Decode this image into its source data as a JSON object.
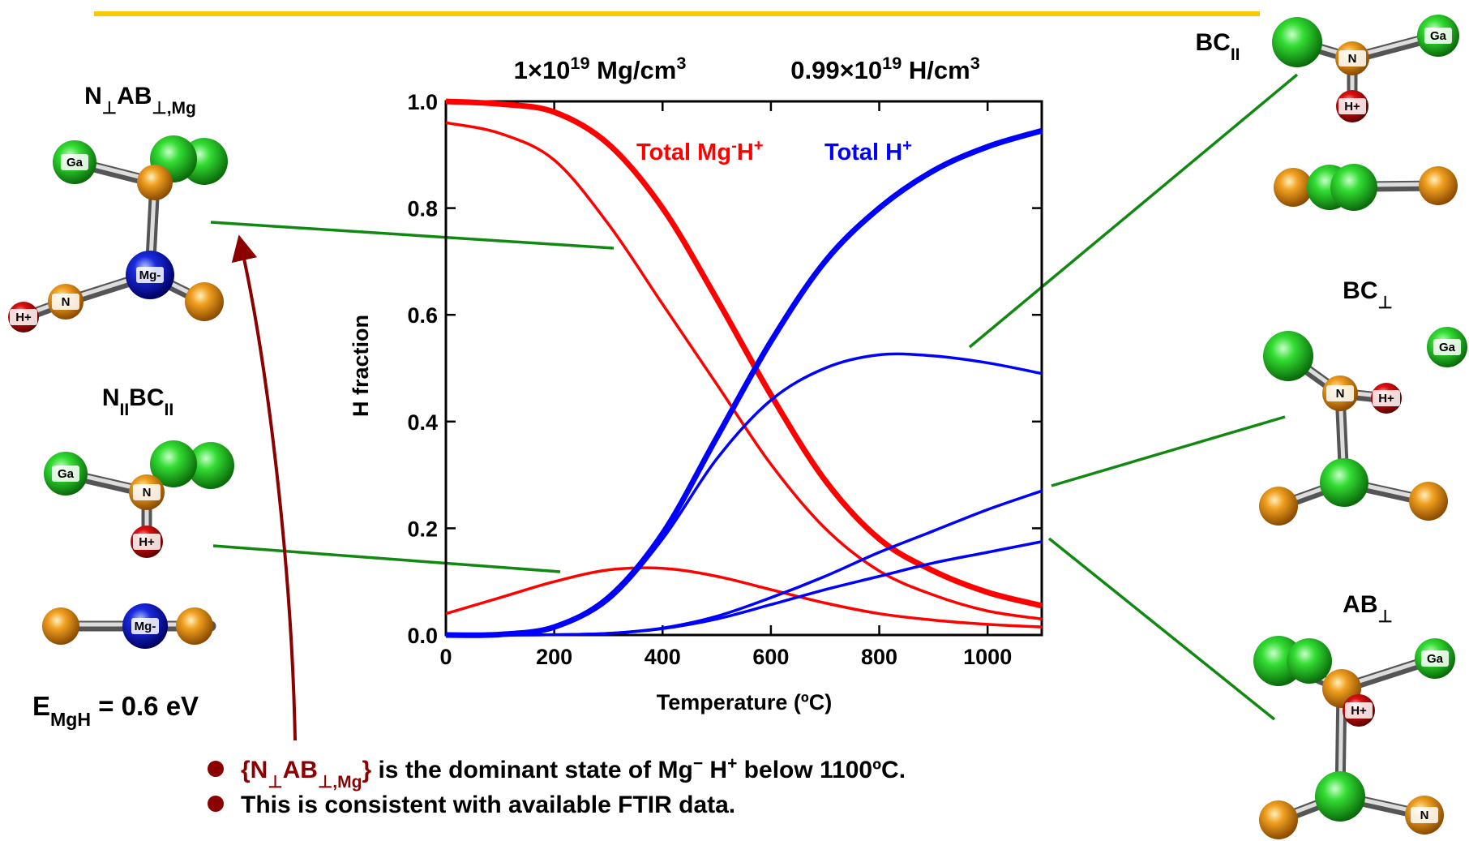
{
  "chart_data": {
    "type": "line",
    "title_parts": [
      [
        "1×10",
        "19",
        " Mg/cm",
        "3"
      ],
      [
        "0.99×10",
        "19",
        " H/cm",
        "3"
      ]
    ],
    "annotations": [
      [
        "Total Mg",
        "-",
        "H",
        "+"
      ],
      [
        "Total H",
        "+"
      ]
    ],
    "x_label": "Temperature (ºC)",
    "y_label": "H fraction",
    "x": [
      0,
      100,
      200,
      300,
      400,
      500,
      600,
      700,
      800,
      900,
      1000,
      1100
    ],
    "series": [
      {
        "color": "#ff0000",
        "style": "thick",
        "values": [
          1.0,
          0.995,
          0.98,
          0.92,
          0.8,
          0.63,
          0.45,
          0.29,
          0.18,
          0.12,
          0.08,
          0.055
        ]
      },
      {
        "color": "#ff0000",
        "style": "thin",
        "values": [
          0.96,
          0.94,
          0.89,
          0.77,
          0.62,
          0.47,
          0.32,
          0.2,
          0.12,
          0.075,
          0.045,
          0.03
        ]
      },
      {
        "color": "#ff0000",
        "style": "thin",
        "values": [
          0.04,
          0.07,
          0.1,
          0.122,
          0.125,
          0.11,
          0.085,
          0.06,
          0.04,
          0.028,
          0.02,
          0.015
        ]
      },
      {
        "color": "#0000ff",
        "style": "thick",
        "values": [
          0,
          0.001,
          0.015,
          0.07,
          0.19,
          0.37,
          0.55,
          0.7,
          0.8,
          0.87,
          0.915,
          0.945
        ]
      },
      {
        "color": "#0000ff",
        "style": "thin",
        "values": [
          0,
          0.001,
          0.014,
          0.065,
          0.18,
          0.33,
          0.44,
          0.5,
          0.525,
          0.523,
          0.51,
          0.49
        ]
      },
      {
        "color": "#0000ff",
        "style": "thin",
        "values": [
          0,
          0,
          0.0005,
          0.003,
          0.013,
          0.035,
          0.07,
          0.11,
          0.155,
          0.195,
          0.235,
          0.27
        ]
      },
      {
        "color": "#0000ff",
        "style": "thin",
        "values": [
          0,
          0,
          0.0005,
          0.003,
          0.012,
          0.03,
          0.057,
          0.085,
          0.11,
          0.135,
          0.155,
          0.175
        ]
      }
    ],
    "xlim": [
      0,
      1100
    ],
    "xticks": [
      0,
      200,
      400,
      600,
      800,
      1000
    ],
    "ylim": [
      0,
      1
    ],
    "yticks": [
      {
        "value": 0,
        "label": "0.0"
      },
      0.2,
      0.4,
      0.6,
      0.8,
      {
        "value": 1,
        "label": "1.0"
      }
    ],
    "grid": false
  },
  "structures": {
    "n_ab": [
      "N",
      "⊥",
      "AB",
      "⊥,Mg"
    ],
    "n_bc": [
      "N",
      "II",
      "BC",
      "II"
    ],
    "bc_par": [
      "BC",
      "II"
    ],
    "bc_perp": [
      "BC",
      "⊥"
    ],
    "ab_perp": [
      "AB",
      "⊥"
    ]
  },
  "energy": [
    "E",
    "MgH",
    " = 0.6 eV"
  ],
  "molecules": [
    [
      "Ga",
      "Mg-",
      "N",
      "H+"
    ],
    [
      "Ga",
      "N",
      "H+"
    ],
    [
      "Mg-"
    ],
    [
      "N",
      "Ga",
      "H+"
    ],
    [
      "N",
      "H+",
      "Ga"
    ],
    [
      "H+",
      "Ga",
      "N"
    ]
  ],
  "bullets": [
    {
      "highlight": [
        "{N",
        "⊥",
        "AB",
        "⊥,Mg",
        "}"
      ],
      "text": [
        " is the dominant state of Mg",
        "−",
        " H",
        "+",
        " below 1100ºC."
      ]
    },
    {
      "text": [
        "This is consistent with available FTIR data."
      ]
    }
  ]
}
